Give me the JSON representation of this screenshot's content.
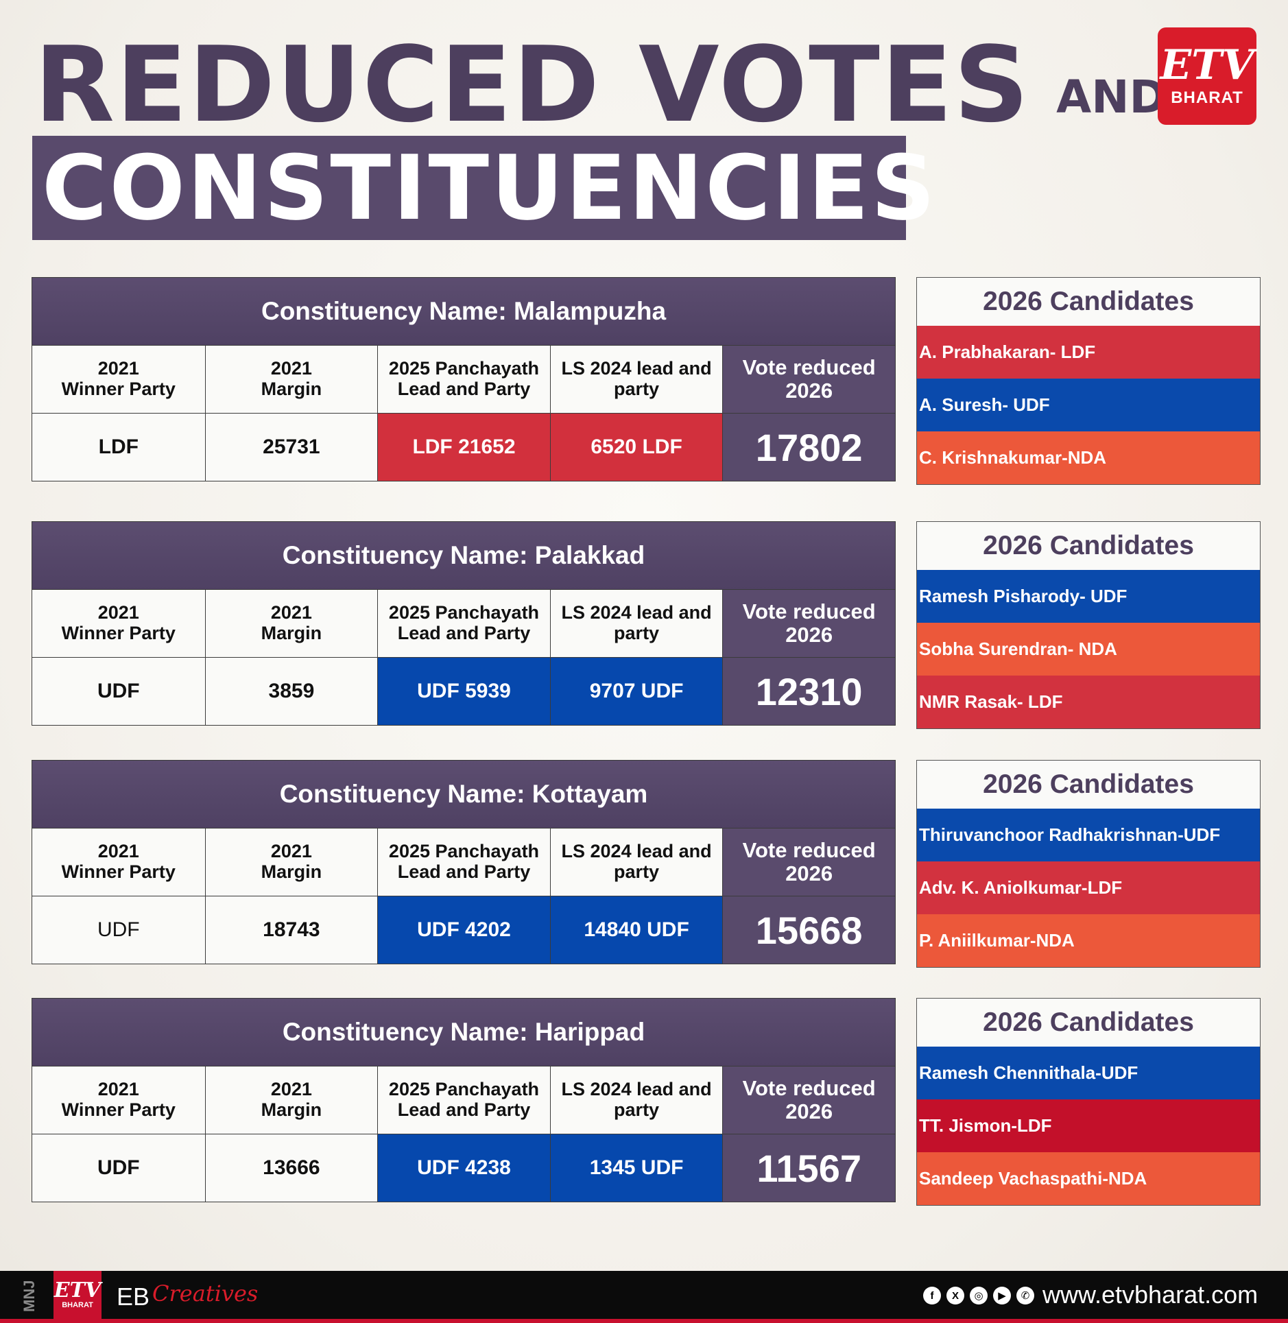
{
  "title": {
    "line1": "REDUCED VOTES",
    "and": "AND",
    "line2": "CONSTITUENCIES"
  },
  "logo": {
    "mark": "ETV",
    "sub": "BHARAT"
  },
  "colors": {
    "ldf": "#d2303d",
    "udf": "#0648ad",
    "nda": "#ec583a",
    "ldf_dark": "#c3102a",
    "purple": "#5a4b6d"
  },
  "column_headers": {
    "winner": "2021\nWinner Party",
    "margin": "2021\nMargin",
    "panchayath": "2025 Panchayath\nLead and Party",
    "ls": "LS 2024 lead and\nparty",
    "vote_reduced": "Vote reduced\n2026"
  },
  "candidates_title": "2026 Candidates",
  "constituencies": [
    {
      "name": "Constituency Name: Malampuzha",
      "winner": "LDF",
      "margin": "25731",
      "panchayath": "LDF 21652",
      "ls": "6520 LDF",
      "vote_reduced": "17802",
      "candidates": [
        {
          "label": "A. Prabhakaran- LDF",
          "color": "#d2323f"
        },
        {
          "label": "A. Suresh- UDF",
          "color": "#0a4aac"
        },
        {
          "label": "C. Krishnakumar-NDA",
          "color": "#ec583a"
        }
      ]
    },
    {
      "name": "Constituency Name: Palakkad",
      "winner": "UDF",
      "margin": "3859",
      "panchayath": "UDF 5939",
      "ls": "9707 UDF",
      "vote_reduced": "12310",
      "candidates": [
        {
          "label": "Ramesh Pisharody- UDF",
          "color": "#0a4aac"
        },
        {
          "label": "Sobha Surendran- NDA",
          "color": "#ec583a"
        },
        {
          "label": "NMR Rasak- LDF",
          "color": "#d2323f"
        }
      ]
    },
    {
      "name": "Constituency Name: Kottayam",
      "winner": "UDF",
      "margin": "18743",
      "panchayath": "UDF 4202",
      "ls": "14840 UDF",
      "vote_reduced": "15668",
      "candidates": [
        {
          "label": "Thiruvanchoor Radhakrishnan-UDF",
          "color": "#0a4aac"
        },
        {
          "label": "Adv. K. Aniolkumar-LDF",
          "color": "#d2323f"
        },
        {
          "label": "P. Aniilkumar-NDA",
          "color": "#ec583a"
        }
      ]
    },
    {
      "name": "Constituency Name: Harippad",
      "winner": "UDF",
      "margin": "13666",
      "panchayath": "UDF 4238",
      "ls": "1345 UDF",
      "vote_reduced": "11567",
      "candidates": [
        {
          "label": "Ramesh Chennithala-UDF",
          "color": "#0a4aac"
        },
        {
          "label": "TT. Jismon-LDF",
          "color": "#c3102a"
        },
        {
          "label": "Sandeep Vachaspathi-NDA",
          "color": "#ec583a"
        }
      ]
    }
  ],
  "footer": {
    "initials": "MNJ",
    "logo_mark": "ETV",
    "logo_sub": "BHARAT",
    "brand": "EB",
    "brand_script": "Creatives",
    "social_icons": [
      "facebook-icon",
      "x-icon",
      "instagram-icon",
      "youtube-icon",
      "whatsapp-icon"
    ],
    "website": "www.etvbharat.com"
  }
}
